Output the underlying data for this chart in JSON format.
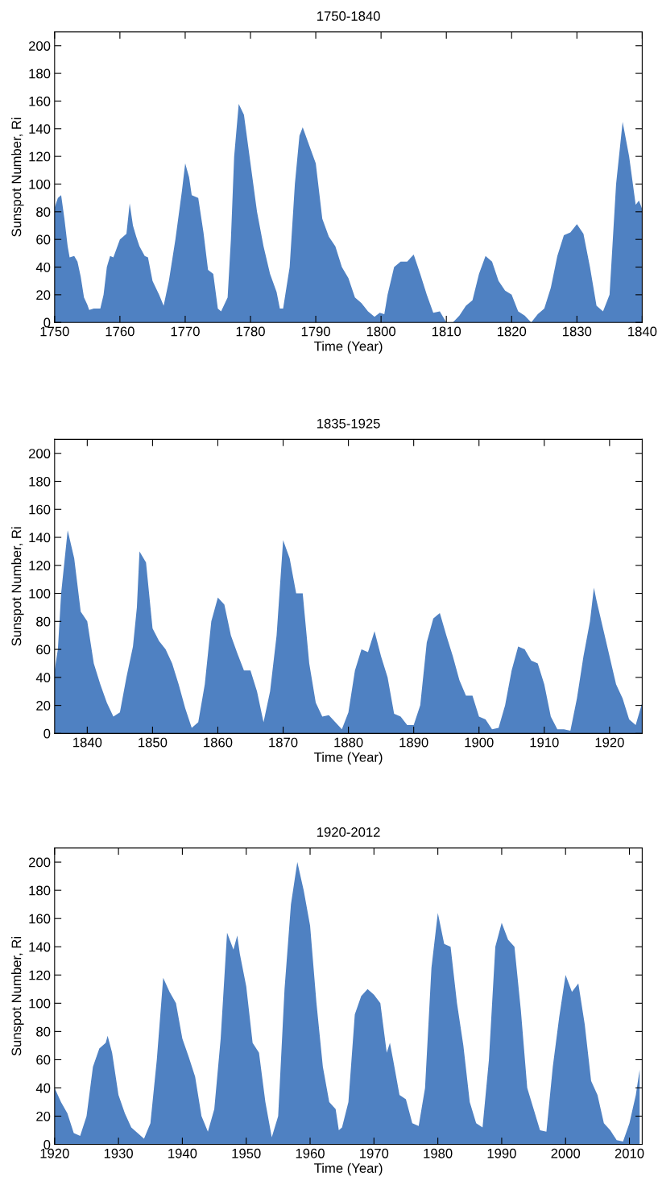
{
  "chart_data": [
    {
      "type": "area",
      "title": "1750-1840",
      "xlabel": "Time (Year)",
      "ylabel": "Sunspot Number, Ri",
      "xlim": [
        1750,
        1840
      ],
      "xticks": [
        1750,
        1760,
        1770,
        1780,
        1790,
        1800,
        1810,
        1820,
        1830,
        1840
      ],
      "ylim": [
        0,
        210
      ],
      "yticks": [
        0,
        20,
        40,
        60,
        80,
        100,
        120,
        140,
        160,
        180,
        200
      ],
      "grid": false,
      "legend": false,
      "x": [
        1750,
        1750.5,
        1751,
        1751.5,
        1752,
        1752.3,
        1753,
        1753.5,
        1754,
        1754.5,
        1755,
        1755.3,
        1756,
        1757,
        1757.5,
        1758,
        1758.5,
        1759,
        1760,
        1761,
        1761.5,
        1762,
        1762.5,
        1763,
        1763.8,
        1764.3,
        1765,
        1766,
        1766.7,
        1767.5,
        1768.5,
        1769.5,
        1770,
        1770.6,
        1771,
        1772,
        1772.8,
        1773.5,
        1774.3,
        1775,
        1775.5,
        1776.5,
        1777,
        1777.5,
        1778.2,
        1779,
        1780,
        1781,
        1782,
        1783,
        1784,
        1784.5,
        1785,
        1786,
        1786.8,
        1787.5,
        1788,
        1789,
        1790,
        1791,
        1792,
        1793,
        1794,
        1795,
        1796,
        1797,
        1798,
        1799,
        1799.8,
        1800.5,
        1801,
        1802,
        1803,
        1804,
        1805,
        1806,
        1807,
        1808,
        1809,
        1810,
        1811,
        1812,
        1813,
        1814,
        1815,
        1816,
        1817,
        1818,
        1819,
        1820,
        1821,
        1822,
        1823,
        1824,
        1825,
        1826,
        1827,
        1828,
        1829,
        1830,
        1831,
        1832,
        1833,
        1834,
        1835,
        1836,
        1837,
        1838,
        1839,
        1839.5,
        1840
      ],
      "series": [
        {
          "color": "#4f81c2",
          "values": [
            83,
            90,
            92,
            75,
            55,
            47,
            48,
            44,
            33,
            18,
            13,
            9,
            10,
            10,
            20,
            40,
            48,
            47,
            60,
            64,
            86,
            70,
            62,
            55,
            48,
            47,
            30,
            20,
            12,
            30,
            60,
            95,
            115,
            105,
            92,
            90,
            65,
            38,
            35,
            10,
            8,
            18,
            60,
            120,
            158,
            150,
            115,
            80,
            55,
            35,
            22,
            10,
            10,
            40,
            100,
            135,
            141,
            128,
            115,
            75,
            62,
            55,
            40,
            32,
            18,
            14,
            8,
            4,
            7,
            6,
            20,
            40,
            44,
            44,
            49,
            35,
            20,
            7,
            8,
            0,
            0,
            5,
            12,
            16,
            35,
            48,
            44,
            30,
            23,
            20,
            8,
            5,
            0,
            6,
            10,
            25,
            48,
            63,
            65,
            71,
            64,
            40,
            12,
            8,
            20,
            100,
            145,
            120,
            85,
            88,
            82
          ]
        }
      ]
    },
    {
      "type": "area",
      "title": "1835-1925",
      "xlabel": "Time (Year)",
      "ylabel": "Sunspot Number, Ri",
      "xlim": [
        1835,
        1925
      ],
      "xticks": [
        1840,
        1850,
        1860,
        1870,
        1880,
        1890,
        1900,
        1910,
        1920
      ],
      "ylim": [
        0,
        210
      ],
      "yticks": [
        0,
        20,
        40,
        60,
        80,
        100,
        120,
        140,
        160,
        180,
        200
      ],
      "grid": false,
      "legend": false,
      "x": [
        1835,
        1835.5,
        1836,
        1837,
        1838,
        1839,
        1840,
        1841,
        1842,
        1843,
        1844,
        1845,
        1846,
        1847,
        1847.6,
        1848,
        1849,
        1850,
        1851,
        1852,
        1853,
        1854,
        1855,
        1856,
        1857,
        1858,
        1859,
        1860,
        1861,
        1862,
        1863,
        1864,
        1865,
        1866,
        1867,
        1868,
        1869,
        1870,
        1871,
        1872,
        1873,
        1874,
        1875,
        1876,
        1877,
        1878,
        1879,
        1880,
        1881,
        1882,
        1883,
        1884,
        1885,
        1886,
        1887,
        1888,
        1889,
        1890,
        1891,
        1892,
        1893,
        1894,
        1895,
        1896,
        1897,
        1898,
        1899,
        1900,
        1901,
        1902,
        1903,
        1904,
        1905,
        1906,
        1907,
        1908,
        1909,
        1910,
        1911,
        1912,
        1913,
        1914,
        1915,
        1916,
        1917,
        1917.6,
        1918,
        1919,
        1920,
        1921,
        1922,
        1923,
        1924,
        1925
      ],
      "series": [
        {
          "color": "#4f81c2",
          "values": [
            45,
            60,
            100,
            145,
            125,
            87,
            80,
            50,
            35,
            22,
            12,
            15,
            40,
            62,
            90,
            130,
            122,
            75,
            66,
            60,
            50,
            35,
            18,
            4,
            8,
            35,
            80,
            97,
            92,
            70,
            57,
            45,
            45,
            30,
            8,
            30,
            70,
            138,
            125,
            100,
            100,
            50,
            22,
            12,
            13,
            8,
            3,
            15,
            45,
            60,
            58,
            73,
            55,
            40,
            14,
            12,
            6,
            6,
            20,
            65,
            82,
            86,
            70,
            55,
            38,
            27,
            27,
            12,
            10,
            3,
            4,
            20,
            45,
            62,
            60,
            52,
            50,
            35,
            12,
            3,
            3,
            2,
            25,
            55,
            80,
            104,
            95,
            75,
            55,
            35,
            25,
            10,
            6,
            22
          ]
        }
      ]
    },
    {
      "type": "area",
      "title": "1920-2012",
      "xlabel": "Time (Year)",
      "ylabel": "Sunspot Number, Ri",
      "xlim": [
        1920,
        2012
      ],
      "xticks": [
        1920,
        1930,
        1940,
        1950,
        1960,
        1970,
        1980,
        1990,
        2000,
        2010
      ],
      "ylim": [
        0,
        210
      ],
      "yticks": [
        0,
        20,
        40,
        60,
        80,
        100,
        120,
        140,
        160,
        180,
        200
      ],
      "grid": false,
      "legend": false,
      "x": [
        1920,
        1921,
        1922,
        1923,
        1924,
        1925,
        1926,
        1927,
        1928,
        1928.3,
        1929,
        1930,
        1931,
        1932,
        1933,
        1934,
        1935,
        1936,
        1937,
        1938,
        1939,
        1940,
        1941,
        1942,
        1943,
        1944,
        1945,
        1946,
        1947,
        1948,
        1948.6,
        1949,
        1950,
        1951,
        1952,
        1953,
        1954,
        1955,
        1956,
        1957,
        1958,
        1959,
        1960,
        1961,
        1962,
        1963,
        1964,
        1964.5,
        1965,
        1966,
        1967,
        1968,
        1969,
        1970,
        1971,
        1972,
        1972.5,
        1973,
        1974,
        1975,
        1976,
        1977,
        1978,
        1979,
        1980,
        1981,
        1982,
        1983,
        1984,
        1985,
        1986,
        1987,
        1988,
        1989,
        1990,
        1991,
        1992,
        1993,
        1994,
        1995,
        1996,
        1997,
        1998,
        1999,
        2000,
        2001,
        2002,
        2003,
        2004,
        2005,
        2006,
        2007,
        2008,
        2009,
        2010,
        2011,
        2011.6
      ],
      "series": [
        {
          "color": "#4f81c2",
          "values": [
            40,
            30,
            22,
            8,
            6,
            20,
            55,
            68,
            72,
            77,
            65,
            35,
            22,
            12,
            8,
            4,
            15,
            60,
            118,
            108,
            100,
            75,
            62,
            48,
            20,
            9,
            25,
            75,
            150,
            138,
            148,
            135,
            112,
            72,
            65,
            30,
            5,
            20,
            110,
            170,
            200,
            180,
            155,
            100,
            55,
            30,
            25,
            10,
            12,
            30,
            92,
            105,
            110,
            106,
            100,
            65,
            72,
            60,
            35,
            32,
            15,
            13,
            40,
            125,
            164,
            142,
            140,
            100,
            70,
            30,
            15,
            12,
            60,
            140,
            157,
            145,
            140,
            95,
            40,
            25,
            10,
            9,
            55,
            90,
            120,
            108,
            114,
            85,
            45,
            35,
            15,
            10,
            3,
            2,
            15,
            35,
            53
          ]
        }
      ]
    }
  ]
}
